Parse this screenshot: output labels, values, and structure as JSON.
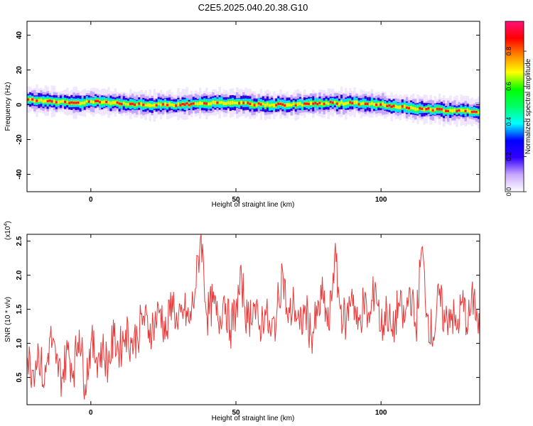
{
  "figure_title": "C2E5.2025.040.20.38.G10",
  "chart_data": [
    {
      "type": "heatmap",
      "xlabel": "Height of straight line (km)",
      "ylabel": "Frequency (Hz)",
      "xlim": [
        -22,
        134
      ],
      "ylim": [
        -50,
        48
      ],
      "xticks": [
        0,
        50,
        100
      ],
      "yticks": [
        -40,
        -20,
        0,
        20,
        40
      ],
      "grid": false,
      "ridge_frequency": {
        "x": [
          -22,
          -12,
          -5,
          0,
          10,
          20,
          30,
          40,
          50,
          60,
          70,
          80,
          90,
          100,
          110,
          120,
          134
        ],
        "y": [
          3,
          2,
          1,
          2,
          1,
          0,
          0,
          1,
          1,
          0,
          0,
          1,
          1,
          0,
          -2,
          -3,
          -4
        ]
      },
      "colorbar": {
        "label": "Normalized spectral amplitude",
        "range": [
          0,
          0.97
        ],
        "ticks": [
          0.0,
          0.2,
          0.4,
          0.6,
          0.8
        ],
        "tick_labels": [
          "0.0",
          "0.2",
          "0.4",
          "0.6",
          "0.8"
        ],
        "colors": [
          "#ffffff",
          "#c9a8ff",
          "#3300ff",
          "#0000ff",
          "#00ffff",
          "#00ff66",
          "#00ff00",
          "#ffff00",
          "#ff8800",
          "#ff0000",
          "#ff1177"
        ]
      }
    },
    {
      "type": "line",
      "xlabel": "Height of straight line (km)",
      "ylabel": "SNR (10 * v/v)",
      "scale_label": "(x10",
      "scale_exponent": "4",
      "scale_suffix": ")",
      "xlim": [
        -22,
        134
      ],
      "ylim": [
        0.1,
        2.6
      ],
      "xticks": [
        0,
        50,
        100
      ],
      "yticks": [
        0.5,
        1.0,
        1.5,
        2.0,
        2.5
      ],
      "ytick_labels": [
        "0.5",
        "1.0",
        "1.5",
        "2.0",
        "2.5"
      ],
      "line_color": "#e63939",
      "grid": false,
      "series": [
        {
          "x": [
            -22,
            -20,
            -18,
            -16,
            -14,
            -12,
            -10,
            -8,
            -6,
            -4,
            -2,
            0,
            2,
            4,
            6,
            8,
            10,
            12,
            14,
            16,
            18,
            20,
            22,
            24,
            26,
            28,
            30,
            32,
            34,
            36,
            38,
            40,
            42,
            44,
            46,
            48,
            50,
            52,
            54,
            56,
            58,
            60,
            62,
            64,
            66,
            68,
            70,
            72,
            74,
            76,
            78,
            80,
            82,
            84,
            86,
            88,
            90,
            92,
            94,
            96,
            98,
            100,
            102,
            104,
            106,
            108,
            110,
            112,
            114,
            116,
            118,
            120,
            122,
            124,
            126,
            128,
            130,
            132,
            134
          ],
          "y": [
            0.8,
            0.6,
            0.9,
            0.4,
            1.1,
            0.7,
            0.5,
            0.9,
            0.6,
            1.2,
            0.4,
            1.0,
            0.8,
            0.9,
            0.7,
            1.1,
            0.9,
            1.2,
            1.0,
            1.1,
            1.4,
            1.2,
            1.3,
            1.5,
            1.1,
            1.7,
            1.2,
            1.5,
            1.3,
            1.8,
            2.6,
            1.4,
            1.6,
            1.3,
            1.7,
            1.2,
            1.5,
            1.9,
            1.3,
            1.6,
            1.2,
            1.5,
            1.1,
            1.4,
            2.1,
            1.3,
            1.6,
            1.2,
            1.5,
            1.1,
            1.4,
            1.7,
            1.2,
            2.3,
            1.5,
            1.3,
            1.8,
            1.2,
            1.6,
            1.3,
            1.9,
            1.2,
            1.5,
            1.1,
            1.6,
            1.3,
            1.8,
            1.2,
            2.4,
            1.4,
            1.1,
            1.7,
            1.3,
            1.5,
            1.2,
            1.6,
            1.3,
            1.7,
            1.1
          ]
        }
      ]
    }
  ]
}
